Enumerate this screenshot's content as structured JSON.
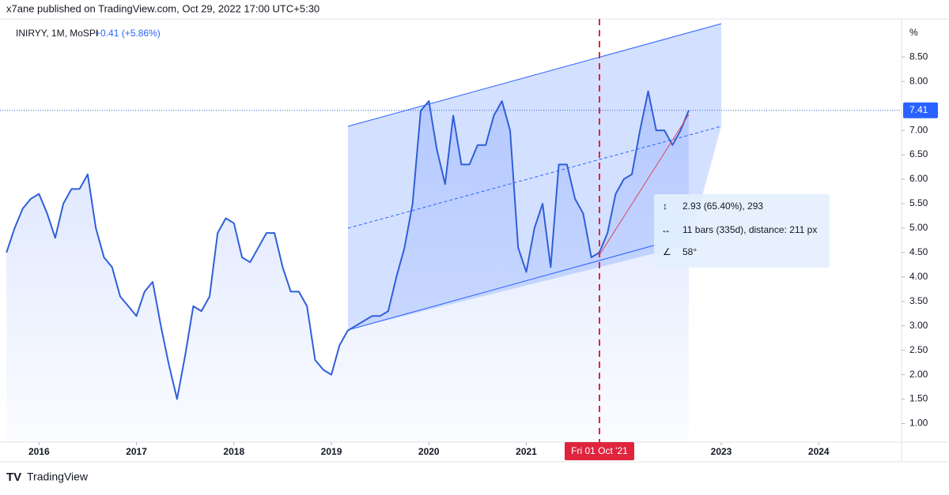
{
  "header": "x7ane published on TradingView.com, Oct 29, 2022 17:00 UTC+5:30",
  "footer": "TradingView",
  "chart_data": {
    "type": "line",
    "legend_change": "+0.41 (+5.86%)",
    "y_unit": "%",
    "crosshair_label": "Fri 01 Oct '21",
    "measure": {
      "price": "2.93 (65.40%), 293",
      "bars": "11 bars (335d), distance: 211 px",
      "angle": "58°"
    },
    "x": [
      "2015-09",
      "2015-10",
      "2015-11",
      "2015-12",
      "2016-01",
      "2016-02",
      "2016-03",
      "2016-04",
      "2016-05",
      "2016-06",
      "2016-07",
      "2016-08",
      "2016-09",
      "2016-10",
      "2016-11",
      "2016-12",
      "2017-01",
      "2017-02",
      "2017-03",
      "2017-04",
      "2017-05",
      "2017-06",
      "2017-07",
      "2017-08",
      "2017-09",
      "2017-10",
      "2017-11",
      "2017-12",
      "2018-01",
      "2018-02",
      "2018-03",
      "2018-04",
      "2018-05",
      "2018-06",
      "2018-07",
      "2018-08",
      "2018-09",
      "2018-10",
      "2018-11",
      "2018-12",
      "2019-01",
      "2019-02",
      "2019-03",
      "2019-04",
      "2019-05",
      "2019-06",
      "2019-07",
      "2019-08",
      "2019-09",
      "2019-10",
      "2019-11",
      "2019-12",
      "2020-01",
      "2020-02",
      "2020-03",
      "2020-04",
      "2020-05",
      "2020-06",
      "2020-07",
      "2020-08",
      "2020-09",
      "2020-10",
      "2020-11",
      "2020-12",
      "2021-01",
      "2021-02",
      "2021-03",
      "2021-04",
      "2021-05",
      "2021-06",
      "2021-07",
      "2021-08",
      "2021-09",
      "2021-10",
      "2021-11",
      "2021-12",
      "2022-01",
      "2022-02",
      "2022-03",
      "2022-04",
      "2022-05",
      "2022-06",
      "2022-07",
      "2022-08",
      "2022-09"
    ],
    "series": [
      {
        "name": "INIRYY, 1M, MoSPI",
        "color": "#2f5fd8",
        "values": [
          4.5,
          5.0,
          5.4,
          5.6,
          5.7,
          5.3,
          4.8,
          5.5,
          5.8,
          5.8,
          6.1,
          5.0,
          4.4,
          4.2,
          3.6,
          3.4,
          3.2,
          3.7,
          3.9,
          3.0,
          2.2,
          1.5,
          2.4,
          3.4,
          3.3,
          3.6,
          4.9,
          5.2,
          5.1,
          4.4,
          4.3,
          4.6,
          4.9,
          4.9,
          4.2,
          3.7,
          3.7,
          3.4,
          2.3,
          2.1,
          2.0,
          2.6,
          2.9,
          3.0,
          3.1,
          3.2,
          3.2,
          3.3,
          4.0,
          4.6,
          5.5,
          7.4,
          7.6,
          6.6,
          5.9,
          7.3,
          6.3,
          6.3,
          6.7,
          6.7,
          7.3,
          7.6,
          7.0,
          4.6,
          4.1,
          5.0,
          5.5,
          4.2,
          6.3,
          6.3,
          5.6,
          5.3,
          4.4,
          4.5,
          4.9,
          5.7,
          6.0,
          6.1,
          7.0,
          7.8,
          7.0,
          7.0,
          6.7,
          7.0,
          7.41
        ]
      }
    ],
    "xlim": [
      2015.6,
      2024.85
    ],
    "xticks": [
      2016,
      2017,
      2018,
      2019,
      2020,
      2021,
      2023,
      2024
    ],
    "ylim": [
      0.62,
      9.28
    ],
    "yticks": [
      {
        "value": 1,
        "label": "1.00"
      },
      {
        "value": 1.5,
        "label": "1.50"
      },
      {
        "value": 2,
        "label": "2.00"
      },
      {
        "value": 2.5,
        "label": "2.50"
      },
      {
        "value": 3,
        "label": "3.00"
      },
      {
        "value": 3.5,
        "label": "3.50"
      },
      {
        "value": 4,
        "label": "4.00"
      },
      {
        "value": 4.5,
        "label": "4.50"
      },
      {
        "value": 5,
        "label": "5.00"
      },
      {
        "value": 5.5,
        "label": "5.50"
      },
      {
        "value": 6,
        "label": "6.00"
      },
      {
        "value": 6.5,
        "label": "6.50"
      },
      {
        "value": 7,
        "label": "7.00"
      },
      {
        "value": 8,
        "label": "8.00"
      },
      {
        "value": 8.5,
        "label": "8.50"
      }
    ]
  }
}
